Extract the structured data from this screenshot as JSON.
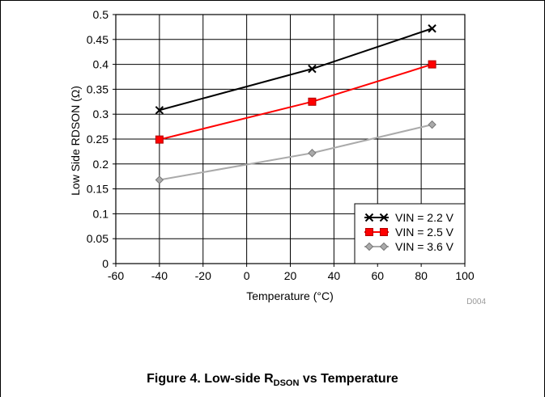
{
  "chart_data": {
    "type": "line",
    "xlabel": "Temperature (°C)",
    "ylabel": "Low Side RDSON (Ω)",
    "xlim": [
      -60,
      100
    ],
    "ylim": [
      0,
      0.5
    ],
    "x_ticks": [
      "-60",
      "-40",
      "-20",
      "0",
      "20",
      "40",
      "60",
      "80",
      "100"
    ],
    "y_ticks": [
      "0",
      "0.05",
      "0.1",
      "0.15",
      "0.2",
      "0.25",
      "0.3",
      "0.35",
      "0.4",
      "0.45",
      "0.5"
    ],
    "grid": true,
    "legend_position": "bottom-right",
    "series": [
      {
        "name": "VIN = 2.2 V",
        "x": [
          -40,
          30,
          85
        ],
        "values": [
          0.308,
          0.391,
          0.472
        ],
        "color": "#000000",
        "marker": "x"
      },
      {
        "name": "VIN = 2.5 V",
        "x": [
          -40,
          30,
          85
        ],
        "values": [
          0.249,
          0.325,
          0.4
        ],
        "color": "#ff0000",
        "marker": "square"
      },
      {
        "name": "VIN = 3.6 V",
        "x": [
          -40,
          30,
          85
        ],
        "values": [
          0.168,
          0.222,
          0.279
        ],
        "color": "#aaaaaa",
        "marker": "diamond"
      }
    ],
    "watermark": "D004"
  },
  "caption": {
    "prefix": "Figure 4. Low-side R",
    "subscript": "DSON",
    "suffix": " vs Temperature"
  }
}
